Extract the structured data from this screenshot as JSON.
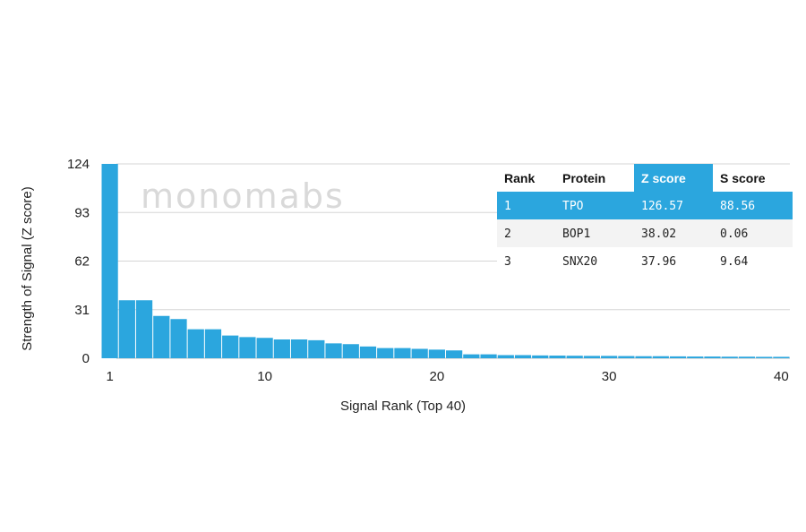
{
  "chart_data": {
    "type": "bar",
    "xlabel": "Signal Rank (Top 40)",
    "ylabel": "Strength of Signal (Z score)",
    "watermark": "monomabs",
    "ylim": [
      0,
      124
    ],
    "xlim": [
      1,
      40
    ],
    "yticks": [
      "124",
      "93",
      "62",
      "31",
      "0"
    ],
    "ytick_values": [
      124,
      93,
      62,
      31,
      0
    ],
    "xticks": [
      "1",
      "10",
      "20",
      "30",
      "40"
    ],
    "xtick_values": [
      1,
      10,
      20,
      30,
      40
    ],
    "grid": true,
    "bar_color": "#2ba6de",
    "values": [
      124,
      37,
      37,
      27,
      25,
      18.5,
      18.5,
      14.5,
      13.5,
      13,
      12,
      12,
      11.5,
      9.5,
      9,
      7.5,
      6.5,
      6.5,
      6,
      5.5,
      5,
      2.5,
      2.5,
      2,
      2,
      1.8,
      1.7,
      1.6,
      1.5,
      1.5,
      1.4,
      1.3,
      1.3,
      1.2,
      1.1,
      1.1,
      1.0,
      1.0,
      0.9,
      0.9
    ]
  },
  "table": {
    "headers": [
      "Rank",
      "Protein",
      "Z score",
      "S score"
    ],
    "highlight_header_index": 2,
    "highlight_color": "#2ba6de",
    "rows": [
      [
        "1",
        "TPO",
        "126.57",
        "88.56"
      ],
      [
        "2",
        "BOP1",
        "38.02",
        "0.06"
      ],
      [
        "3",
        "SNX20",
        "37.96",
        "9.64"
      ]
    ]
  }
}
